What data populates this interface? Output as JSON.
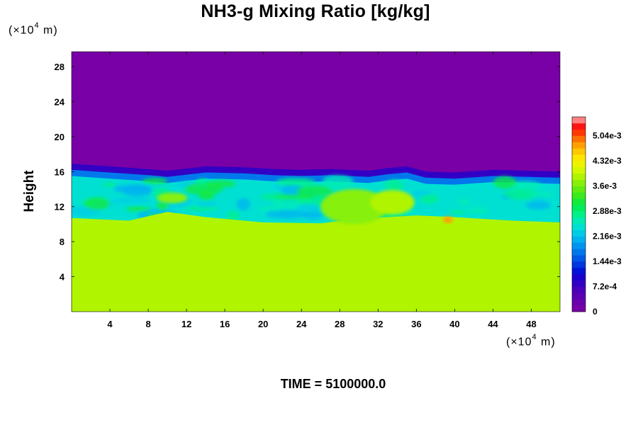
{
  "chart_data": {
    "type": "heatmap",
    "title": "NH3-g Mixing Ratio [kg/kg]",
    "ylabel": "Height",
    "x_unit": {
      "prefix": "(×10",
      "exp": "4",
      "suffix": " m)"
    },
    "y_unit": {
      "prefix": "(×10",
      "exp": "4",
      "suffix": " m)"
    },
    "xlim": [
      0,
      51
    ],
    "ylim": [
      0,
      29.7
    ],
    "x_ticks": [
      4,
      8,
      12,
      16,
      20,
      24,
      28,
      32,
      36,
      40,
      44,
      48
    ],
    "y_ticks": [
      4,
      8,
      12,
      16,
      20,
      24,
      28
    ],
    "time_label": "TIME = 5100000.0",
    "colorbar": {
      "min": 0,
      "max": 0.0054,
      "levels": 30,
      "colors": [
        "#7800a6",
        "#6a00ad",
        "#5a00b4",
        "#4a00ba",
        "#3200c4",
        "#1a00cf",
        "#0012d8",
        "#0035e0",
        "#0058e6",
        "#0078ec",
        "#0096f0",
        "#00b2f0",
        "#00cce6",
        "#00e0d2",
        "#00ecb4",
        "#00f08a",
        "#00ee5e",
        "#14ea38",
        "#3aea1c",
        "#60ec10",
        "#88f008",
        "#b0f400",
        "#d2f800",
        "#ecf400",
        "#ffe600",
        "#ffc800",
        "#ffa000",
        "#ff7000",
        "#ff3a00",
        "#ff1414",
        "#ff8080"
      ],
      "tick_values": [
        0,
        0.00072,
        0.00144,
        0.00216,
        0.00288,
        0.0036,
        0.00432,
        0.00504
      ],
      "tick_labels": [
        "0",
        "7.2e-4",
        "1.44e-3",
        "2.16e-3",
        "2.88e-3",
        "3.6e-3",
        "4.32e-3",
        "5.04e-3"
      ]
    },
    "regions": [
      {
        "name": "upper",
        "y_range": [
          17,
          29.7
        ],
        "value": 0
      },
      {
        "name": "transition",
        "y_range": [
          15.5,
          17
        ],
        "value": 0.0008
      },
      {
        "name": "mixed",
        "y_range": [
          10,
          15.5
        ],
        "value": 0.0025
      },
      {
        "name": "lower",
        "y_range": [
          0,
          10
        ],
        "value": 0.0039
      }
    ],
    "interface_height": [
      [
        0,
        16.9
      ],
      [
        4,
        16.6
      ],
      [
        8,
        16.3
      ],
      [
        10,
        16.1
      ],
      [
        14,
        16.6
      ],
      [
        18,
        16.5
      ],
      [
        21,
        16.3
      ],
      [
        24,
        16.2
      ],
      [
        27,
        16.3
      ],
      [
        31,
        16.1
      ],
      [
        33,
        16.4
      ],
      [
        35,
        16.6
      ],
      [
        37,
        16.0
      ],
      [
        40,
        15.9
      ],
      [
        44,
        16.2
      ],
      [
        48,
        16.1
      ],
      [
        51,
        16.0
      ]
    ],
    "mixed_bottom": [
      [
        0,
        10.7
      ],
      [
        6,
        10.4
      ],
      [
        10,
        11.4
      ],
      [
        14,
        10.8
      ],
      [
        20,
        10.2
      ],
      [
        26,
        10.1
      ],
      [
        30,
        10.6
      ],
      [
        36,
        11.0
      ],
      [
        40,
        10.8
      ],
      [
        46,
        10.4
      ],
      [
        51,
        10.2
      ]
    ],
    "plumes": [
      {
        "x": 29.5,
        "y": 12.0,
        "rx": 3.5,
        "ry": 2.0,
        "value": 0.0037
      },
      {
        "x": 33.5,
        "y": 12.5,
        "rx": 2.3,
        "ry": 1.4,
        "value": 0.0038
      },
      {
        "x": 39.3,
        "y": 10.5,
        "rx": 0.5,
        "ry": 0.4,
        "value": 0.0048
      },
      {
        "x": 10.5,
        "y": 13.0,
        "rx": 1.6,
        "ry": 0.6,
        "value": 0.0037
      }
    ]
  }
}
